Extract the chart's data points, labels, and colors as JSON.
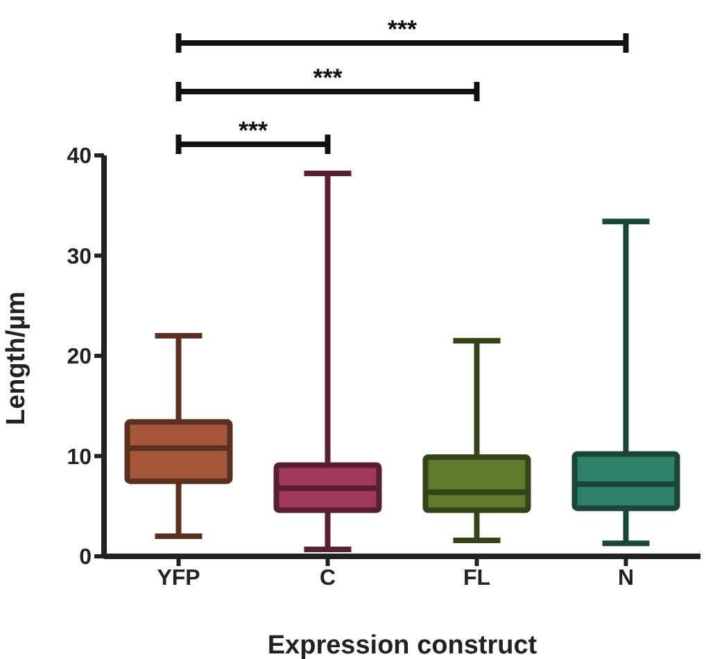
{
  "chart_data": {
    "type": "box",
    "xlabel": "Expression construct",
    "ylabel": "Length/µm",
    "categories": [
      "YFP",
      "C",
      "FL",
      "N"
    ],
    "colors": [
      "#a5573a",
      "#a0395c",
      "#5f7a2c",
      "#2e8066"
    ],
    "boxes": [
      {
        "low": 2.0,
        "q1": 7.5,
        "median": 10.8,
        "q3": 13.4,
        "high": 22.0
      },
      {
        "low": 0.7,
        "q1": 4.6,
        "median": 6.8,
        "q3": 9.1,
        "high": 38.2
      },
      {
        "low": 1.6,
        "q1": 4.6,
        "median": 6.4,
        "q3": 9.9,
        "high": 21.5
      },
      {
        "low": 1.3,
        "q1": 4.8,
        "median": 7.2,
        "q3": 10.2,
        "high": 33.4
      }
    ],
    "ylim": [
      0,
      40
    ],
    "yticks": [
      0,
      10,
      20,
      30,
      40
    ],
    "grid": false,
    "annotations": [
      "***",
      "***",
      "***"
    ]
  }
}
